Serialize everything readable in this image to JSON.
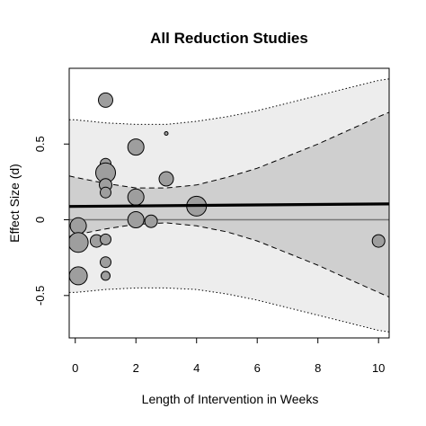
{
  "chart_data": {
    "type": "scatter",
    "title": "All Reduction Studies",
    "xlabel": "Length of Intervention in Weeks",
    "ylabel": "Effect Size (d)",
    "xlim": [
      -0.2,
      10.35
    ],
    "ylim": [
      -0.78,
      1.0
    ],
    "xticks": [
      0,
      2,
      4,
      6,
      8,
      10
    ],
    "yticks": [
      -0.5,
      0,
      0.5
    ],
    "xtick_labels": [
      "0",
      "2",
      "4",
      "6",
      "8",
      "10"
    ],
    "ytick_labels": [
      "-0.5",
      "0",
      "0.5"
    ],
    "grid": false,
    "legend": "none",
    "reference_line": {
      "y": 0,
      "color": "#777777"
    },
    "regression_line": {
      "x": [
        -0.2,
        10.35
      ],
      "y": [
        0.088,
        0.105
      ],
      "color": "#000000"
    },
    "inner_band": {
      "x": [
        -0.2,
        0,
        1,
        2,
        3,
        4,
        5,
        6,
        7,
        8,
        9,
        10,
        10.35
      ],
      "upper": [
        0.29,
        0.28,
        0.24,
        0.21,
        0.21,
        0.23,
        0.28,
        0.34,
        0.42,
        0.5,
        0.59,
        0.68,
        0.71
      ],
      "lower": [
        -0.11,
        -0.1,
        -0.06,
        -0.03,
        -0.02,
        -0.04,
        -0.08,
        -0.14,
        -0.22,
        -0.3,
        -0.39,
        -0.48,
        -0.51
      ]
    },
    "outer_band": {
      "x": [
        -0.2,
        0,
        1,
        2,
        3,
        4,
        5,
        6,
        7,
        8,
        9,
        10,
        10.35
      ],
      "upper": [
        0.66,
        0.66,
        0.64,
        0.63,
        0.63,
        0.65,
        0.68,
        0.72,
        0.77,
        0.82,
        0.87,
        0.92,
        0.93
      ],
      "lower": [
        -0.48,
        -0.48,
        -0.46,
        -0.45,
        -0.45,
        -0.46,
        -0.49,
        -0.53,
        -0.58,
        -0.63,
        -0.68,
        -0.73,
        -0.74
      ]
    },
    "points": [
      {
        "x": 0.1,
        "y": -0.04,
        "size": 9
      },
      {
        "x": 0.1,
        "y": -0.15,
        "size": 11
      },
      {
        "x": 0.1,
        "y": -0.37,
        "size": 10
      },
      {
        "x": 0.7,
        "y": -0.14,
        "size": 7
      },
      {
        "x": 1.0,
        "y": 0.79,
        "size": 8
      },
      {
        "x": 1.0,
        "y": 0.37,
        "size": 6
      },
      {
        "x": 1.0,
        "y": 0.31,
        "size": 11
      },
      {
        "x": 1.0,
        "y": 0.23,
        "size": 7
      },
      {
        "x": 1.0,
        "y": 0.18,
        "size": 6
      },
      {
        "x": 1.0,
        "y": -0.13,
        "size": 6
      },
      {
        "x": 1.0,
        "y": -0.28,
        "size": 6
      },
      {
        "x": 1.0,
        "y": -0.37,
        "size": 5
      },
      {
        "x": 2.0,
        "y": 0.48,
        "size": 9
      },
      {
        "x": 2.0,
        "y": 0.15,
        "size": 9
      },
      {
        "x": 2.0,
        "y": 0.0,
        "size": 9
      },
      {
        "x": 2.5,
        "y": -0.01,
        "size": 7
      },
      {
        "x": 3.0,
        "y": 0.57,
        "size": 2
      },
      {
        "x": 3.0,
        "y": 0.27,
        "size": 8
      },
      {
        "x": 4.0,
        "y": 0.09,
        "size": 11
      },
      {
        "x": 10.0,
        "y": -0.14,
        "size": 7
      }
    ],
    "colors": {
      "outer_band": "#ededed",
      "inner_band": "#cfcfcf",
      "point_fill": "#9e9e9e",
      "point_stroke": "#000000"
    }
  }
}
